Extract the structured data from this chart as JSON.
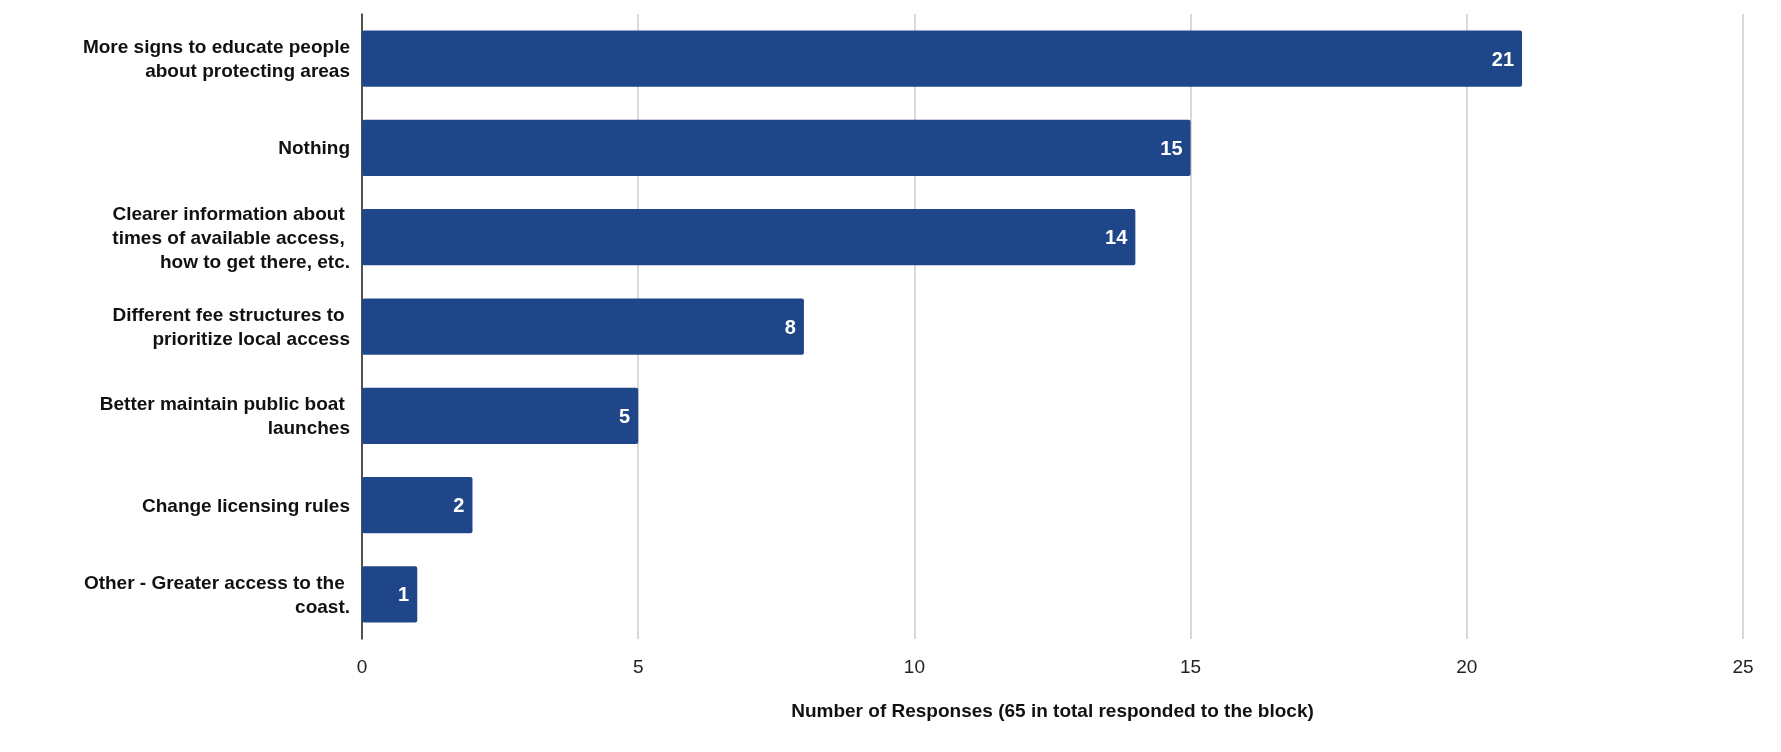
{
  "chart_data": {
    "type": "bar",
    "orientation": "horizontal",
    "xlabel": "Number of Responses (65 in total responded to the block)",
    "categories": [
      "More signs to educate people about protecting areas",
      "Nothing",
      "Clearer information about times of available access, how to get there, etc.",
      "Different fee structures to prioritize local access",
      "Better maintain public boat launches",
      "Change licensing rules",
      "Other - Greater access to the coast."
    ],
    "values": [
      21,
      15,
      14,
      8,
      5,
      2,
      1
    ],
    "color": "#1f4688",
    "xlim": [
      0,
      25
    ],
    "xticks": [
      0,
      5,
      10,
      15,
      20,
      25
    ],
    "grid": "x",
    "data_labels": true
  }
}
